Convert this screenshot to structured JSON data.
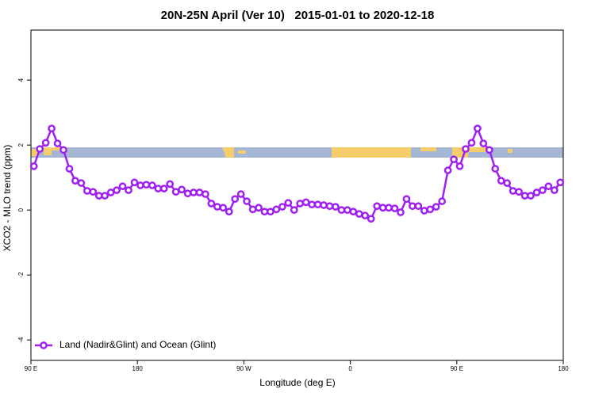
{
  "chart_data": {
    "type": "line",
    "title": "20N-25N April (Ver 10)   2015-01-01 to 2020-12-18",
    "x_label": "Longitude (deg E)",
    "y_label": "XCO2 - MLO trend (ppm)",
    "xlim": [
      90,
      540
    ],
    "xticks": [
      {
        "value": 90,
        "label": "90 E"
      },
      180,
      {
        "value": 270,
        "label": "90 W"
      },
      {
        "value": 360,
        "label": "0"
      },
      {
        "value": 450,
        "label": "90 E"
      },
      {
        "value": 540,
        "label": "180"
      }
    ],
    "ylim": [
      -4.63,
      5.54
    ],
    "yticks": [
      -4,
      -2,
      0,
      2,
      4
    ],
    "legend": "bottom-left",
    "x": [
      92.5,
      97.5,
      102.5,
      107.5,
      112.5,
      117.5,
      122.5,
      127.5,
      132.5,
      137.5,
      142.5,
      147.5,
      152.5,
      157.5,
      162.5,
      167.5,
      172.5,
      177.5,
      182.5,
      187.5,
      192.5,
      197.5,
      202.5,
      207.5,
      212.5,
      217.5,
      222.5,
      227.5,
      232.5,
      237.5,
      242.5,
      247.5,
      252.5,
      257.5,
      262.5,
      267.5,
      272.5,
      277.5,
      282.5,
      287.5,
      292.5,
      297.5,
      302.5,
      307.5,
      312.5,
      317.5,
      322.5,
      327.5,
      332.5,
      337.5,
      342.5,
      347.5,
      352.5,
      357.5,
      362.5,
      367.5,
      372.5,
      377.5,
      382.5,
      387.5,
      392.5,
      397.5,
      402.5,
      407.5,
      412.5,
      417.5,
      422.5,
      427.5,
      432.5,
      437.5,
      442.5,
      447.5,
      452.5,
      457.5,
      462.5,
      467.5,
      472.5,
      477.5,
      482.5,
      487.5,
      492.5,
      497.5,
      502.5,
      507.5,
      512.5,
      517.5,
      522.5,
      527.5,
      532.5,
      537.5
    ],
    "series": [
      {
        "name": "Land (Nadir&Glint) and Ocean (Glint)",
        "color": "#a020f0",
        "values": [
          1.35,
          1.88,
          2.07,
          2.51,
          2.05,
          1.85,
          1.27,
          0.9,
          0.83,
          0.59,
          0.56,
          0.44,
          0.44,
          0.54,
          0.61,
          0.73,
          0.61,
          0.85,
          0.76,
          0.78,
          0.76,
          0.66,
          0.66,
          0.8,
          0.56,
          0.63,
          0.51,
          0.54,
          0.54,
          0.49,
          0.2,
          0.1,
          0.07,
          -0.05,
          0.34,
          0.49,
          0.27,
          0.02,
          0.07,
          -0.05,
          -0.05,
          0.02,
          0.1,
          0.22,
          0,
          0.2,
          0.24,
          0.17,
          0.17,
          0.15,
          0.12,
          0.1,
          0,
          0,
          -0.05,
          -0.12,
          -0.17,
          -0.27,
          0.12,
          0.07,
          0.07,
          0.05,
          -0.07,
          0.34,
          0.12,
          0.12,
          -0.02,
          0.02,
          0.1,
          0.27,
          1.22,
          1.56,
          1.35,
          1.88,
          2.07,
          2.51,
          2.05,
          1.85,
          1.27,
          0.9,
          0.83,
          0.59,
          0.56,
          0.44,
          0.44,
          0.54,
          0.61,
          0.73,
          0.61,
          0.85
        ]
      }
    ]
  }
}
